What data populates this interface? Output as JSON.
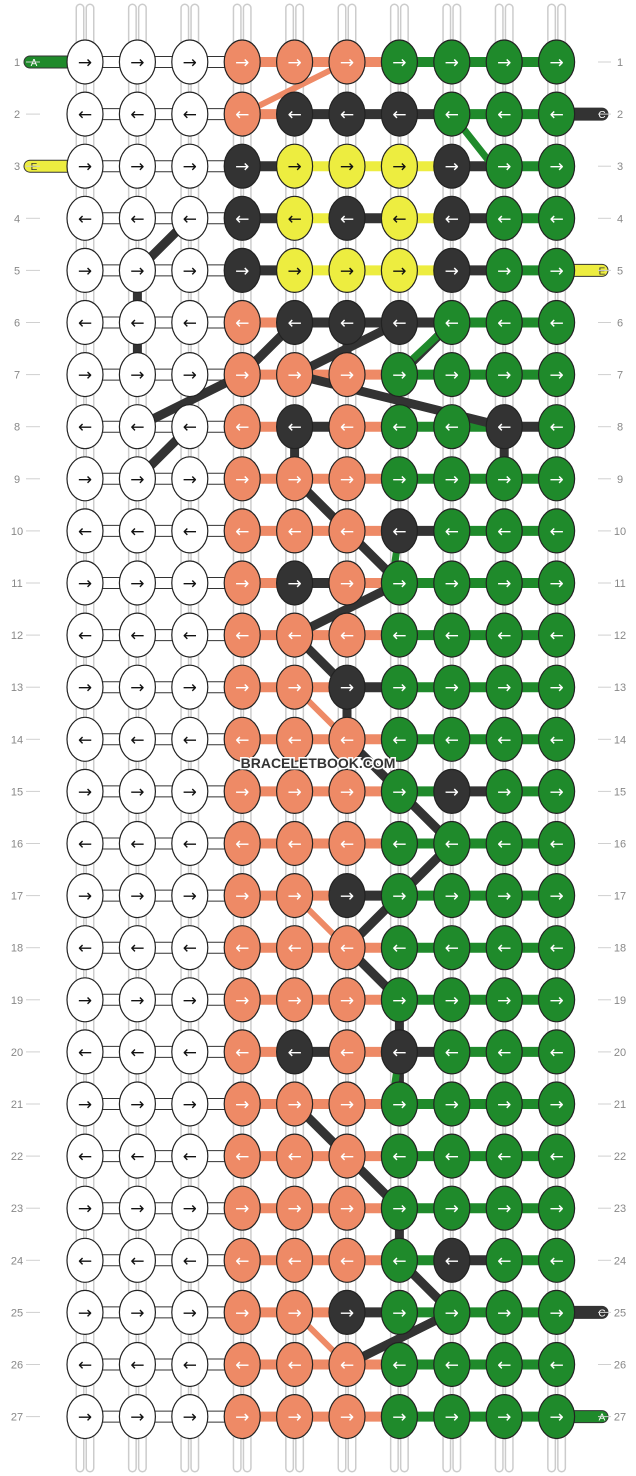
{
  "watermark": "BRACELETBOOK.COM",
  "colors": {
    "W": "#ffffff",
    "O": "#ee8a66",
    "D": "#333333",
    "Y": "#eded40",
    "G": "#1f8a2b"
  },
  "string_letters": {
    "left": [
      {
        "row": 1,
        "letter": "A",
        "color": "G"
      },
      {
        "row": 3,
        "letter": "E",
        "color": "Y"
      }
    ],
    "right": [
      {
        "row": 2,
        "letter": "C",
        "color": "D"
      },
      {
        "row": 5,
        "letter": "E",
        "color": "Y"
      },
      {
        "row": 25,
        "letter": "C",
        "color": "D"
      },
      {
        "row": 27,
        "letter": "A",
        "color": "G"
      }
    ]
  },
  "row_numbers": [
    1,
    2,
    3,
    4,
    5,
    6,
    7,
    8,
    9,
    10,
    11,
    12,
    13,
    14,
    15,
    16,
    17,
    18,
    19,
    20,
    21,
    22,
    23,
    24,
    25,
    26,
    27
  ],
  "knot_grid": [
    "WWWOOOGGGG",
    "WWWODDDGGG",
    "WWWDYYYDGG",
    "WWWDYDYDGG",
    "WWWDYYYDGG",
    "WWWODDDGGG",
    "WWWOOOGGGG",
    "WWWODOGGDG",
    "WWWOOOGGGG",
    "WWWOOODGGG",
    "WWWODOGGGG",
    "WWWOOOGGGG",
    "WWWOODGGGG",
    "WWWOOOGGGG",
    "WWWOOOGDGG",
    "WWWOOOGGGG",
    "WWWOODGGGG",
    "WWWOOOGGGG",
    "WWWOOOGGGG",
    "WWWODODGGG",
    "WWWOOOGGGG",
    "WWWOOOGGGG",
    "WWWOOOGGGG",
    "WWWOOOGDGG",
    "WWWOODGGGG",
    "WWWOOOGGGG",
    "WWWOOOGGGG"
  ],
  "direction_odd_rows": "→",
  "direction_even_rows": "←"
}
